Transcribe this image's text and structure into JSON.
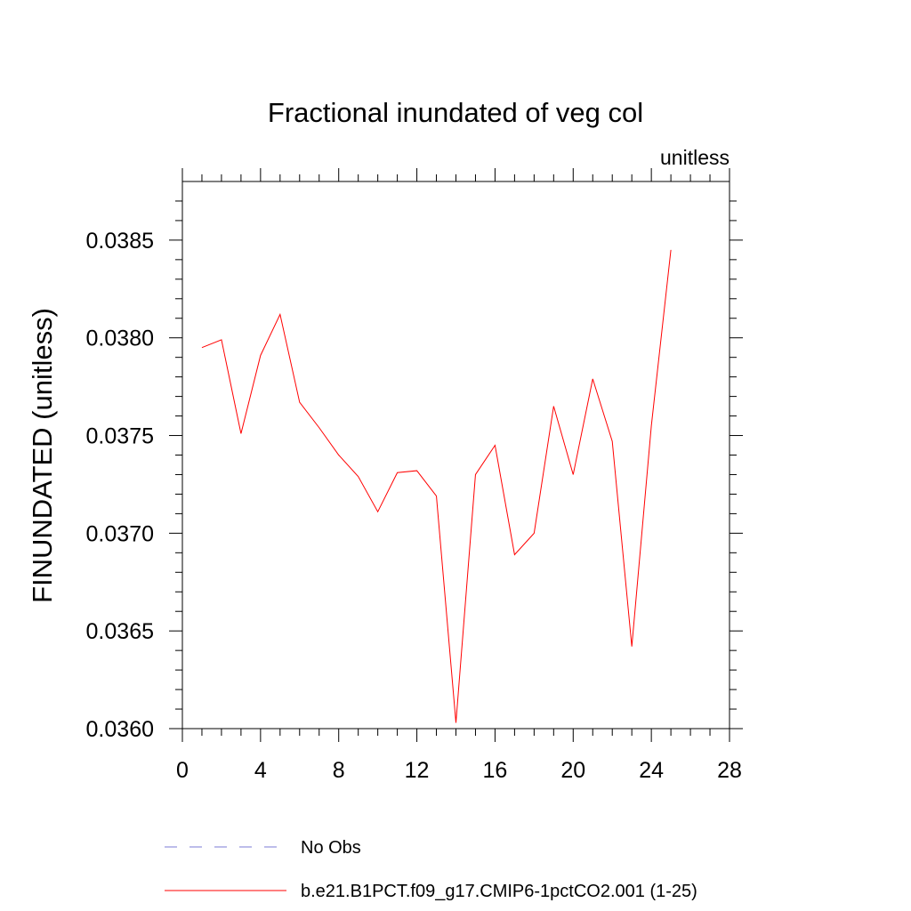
{
  "chart_data": {
    "type": "line",
    "title": "Fractional inundated of veg col",
    "units_label": "unitless",
    "ylabel": "FINUNDATED  (unitless)",
    "xlabel": "",
    "xlim": [
      0,
      28
    ],
    "ylim": [
      0.036,
      0.0388
    ],
    "xticks": [
      0,
      4,
      8,
      12,
      16,
      20,
      24,
      28
    ],
    "yticks": [
      0.036,
      0.0365,
      0.037,
      0.0375,
      0.038,
      0.0385
    ],
    "xtick_labels": [
      "0",
      "4",
      "8",
      "12",
      "16",
      "20",
      "24",
      "28"
    ],
    "ytick_labels": [
      "0.0360",
      "0.0365",
      "0.0370",
      "0.0375",
      "0.0380",
      "0.0385"
    ],
    "grid": false,
    "legend_position": "bottom",
    "series": [
      {
        "name": "No Obs",
        "color": "#7b7bd6",
        "style": "dashed",
        "x": [],
        "values": []
      },
      {
        "name": "b.e21.B1PCT.f09_g17.CMIP6-1pctCO2.001 (1-25)",
        "color": "#ff0000",
        "style": "solid",
        "x": [
          1,
          2,
          3,
          4,
          5,
          6,
          7,
          8,
          9,
          10,
          11,
          12,
          13,
          14,
          15,
          16,
          17,
          18,
          19,
          20,
          21,
          22,
          23,
          24,
          25
        ],
        "values": [
          0.03795,
          0.03799,
          0.03751,
          0.03791,
          0.03812,
          0.03767,
          0.03754,
          0.0374,
          0.03729,
          0.03711,
          0.03731,
          0.03732,
          0.03719,
          0.03603,
          0.0373,
          0.03745,
          0.03689,
          0.037,
          0.03765,
          0.0373,
          0.03779,
          0.03747,
          0.03642,
          0.03755,
          0.03845
        ]
      }
    ]
  }
}
